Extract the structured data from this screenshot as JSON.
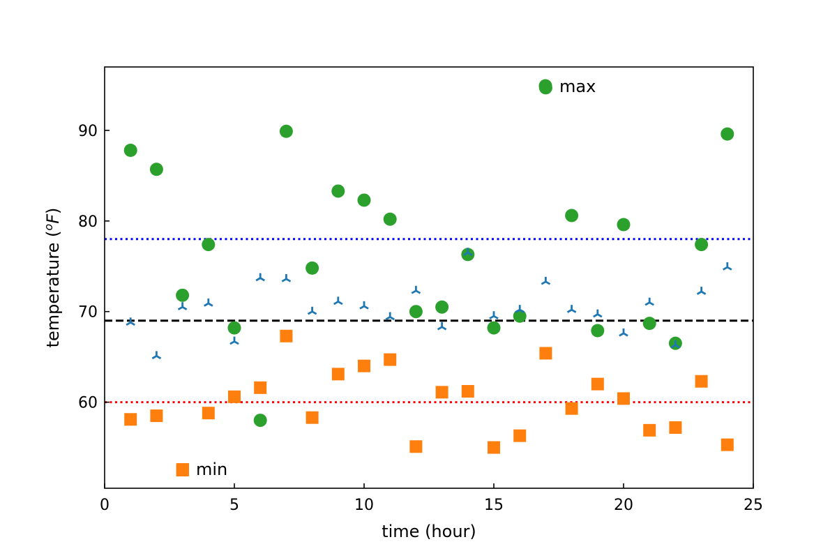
{
  "chart_data": {
    "type": "scatter",
    "xlabel": "time (hour)",
    "ylabel": "temperature (",
    "ylabel_super": "o",
    "ylabel_var": "F",
    "ylabel_close": ")",
    "xlim": [
      0,
      25
    ],
    "ylim": [
      50.5,
      97
    ],
    "xticks": [
      "0",
      "5",
      "10",
      "15",
      "20",
      "25"
    ],
    "yticks": [
      "60",
      "70",
      "80",
      "90"
    ],
    "grid": false,
    "x": [
      1,
      2,
      3,
      4,
      5,
      6,
      7,
      8,
      9,
      10,
      11,
      12,
      13,
      14,
      15,
      16,
      17,
      18,
      19,
      20,
      21,
      22,
      23,
      24
    ],
    "series": [
      {
        "name": "max",
        "marker": "circle",
        "color": "#2ca02c",
        "values": [
          87.8,
          85.7,
          71.8,
          77.4,
          68.2,
          58.0,
          89.9,
          74.8,
          83.3,
          82.3,
          80.2,
          70.0,
          70.5,
          76.3,
          68.2,
          69.5,
          94.7,
          80.6,
          67.9,
          79.6,
          68.7,
          66.5,
          77.4,
          89.6
        ]
      },
      {
        "name": "min",
        "marker": "square",
        "color": "#ff7f0e",
        "values": [
          58.1,
          58.5,
          52.5,
          58.8,
          60.6,
          61.6,
          67.3,
          58.3,
          63.1,
          64.0,
          64.7,
          55.1,
          61.1,
          61.2,
          55.0,
          56.3,
          65.4,
          59.3,
          62.0,
          60.4,
          56.9,
          57.2,
          62.3,
          55.3
        ]
      },
      {
        "name": "",
        "marker": "tri_up",
        "color": "#1f77b4",
        "values": [
          68.8,
          65.1,
          70.5,
          70.9,
          66.7,
          73.7,
          73.6,
          70.0,
          71.1,
          70.6,
          69.4,
          72.3,
          68.3,
          76.5,
          69.5,
          70.2,
          73.3,
          70.2,
          69.7,
          67.6,
          71.0,
          66.3,
          72.2,
          74.9
        ]
      }
    ],
    "hlines": [
      {
        "y": 78,
        "color": "#0000ff",
        "style": "dotted"
      },
      {
        "y": 69,
        "color": "#000000",
        "style": "dashed"
      },
      {
        "y": 60,
        "color": "#ff0000",
        "style": "dotted"
      }
    ],
    "legends": [
      {
        "label": "max",
        "series": "max",
        "placement": "top-right"
      },
      {
        "label": "min",
        "series": "min",
        "placement": "bottom-left"
      }
    ]
  }
}
